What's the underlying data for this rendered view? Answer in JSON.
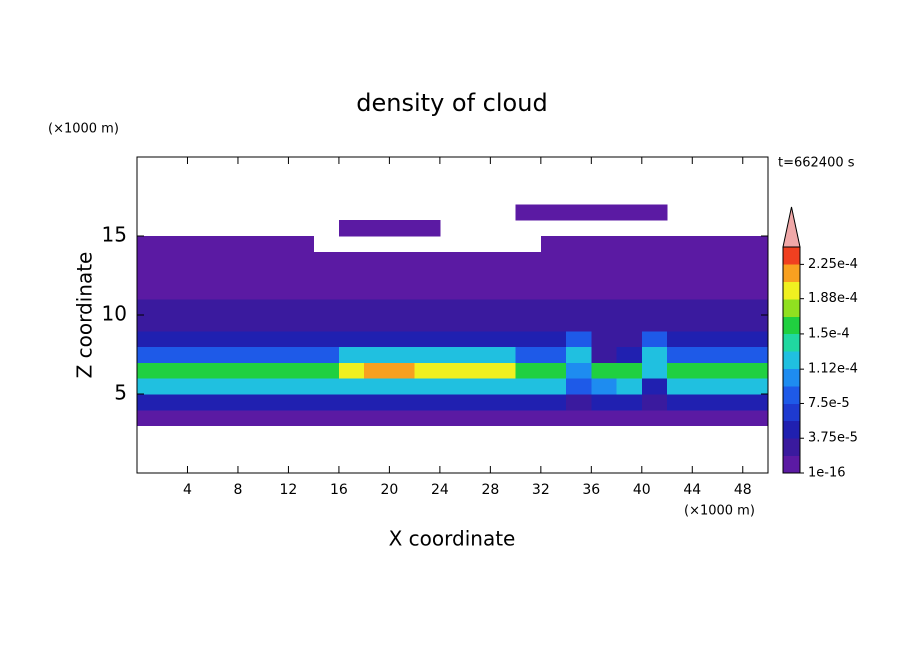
{
  "chart_data": {
    "type": "contour",
    "title": "density of cloud",
    "x_label": "X coordinate",
    "y_label": "Z coordinate",
    "x_unit_label": "(×1000 m)",
    "y_unit_label": "(×1000 m)",
    "time_label": "t=662400 s",
    "xlim": [
      0,
      50
    ],
    "ylim": [
      0,
      20
    ],
    "xticks": [
      4,
      8,
      12,
      16,
      20,
      24,
      28,
      32,
      36,
      40,
      44,
      48
    ],
    "yticks": [
      5,
      10,
      15
    ],
    "x": [
      1,
      3,
      5,
      7,
      9,
      11,
      13,
      15,
      17,
      19,
      21,
      23,
      25,
      27,
      29,
      31,
      33,
      35,
      37,
      39,
      41,
      43,
      45,
      47,
      49
    ],
    "y": [
      0.5,
      1.5,
      2.5,
      3.5,
      4.5,
      5.5,
      6.5,
      7.5,
      8.5,
      9.5,
      10.5,
      11.5,
      12.5,
      13.5,
      14.5,
      15.5,
      16.5,
      17.5,
      18.5,
      19.5
    ],
    "values": [
      [
        null,
        null,
        null,
        null,
        null,
        null,
        null,
        null,
        null,
        null,
        null,
        null,
        null,
        null,
        null,
        null,
        null,
        null,
        null,
        null,
        null,
        null,
        null,
        null,
        null
      ],
      [
        null,
        null,
        null,
        null,
        null,
        null,
        null,
        null,
        null,
        null,
        null,
        null,
        null,
        null,
        null,
        null,
        null,
        null,
        null,
        null,
        null,
        null,
        null,
        null,
        null
      ],
      [
        null,
        null,
        null,
        null,
        null,
        null,
        null,
        null,
        null,
        null,
        null,
        null,
        null,
        null,
        null,
        null,
        null,
        null,
        null,
        null,
        null,
        null,
        null,
        null,
        null
      ],
      [
        1e-05,
        1e-05,
        1e-05,
        1e-05,
        1e-05,
        1e-05,
        1e-05,
        1e-05,
        1e-05,
        1e-05,
        1e-05,
        1e-05,
        1e-05,
        1e-05,
        1e-05,
        1e-05,
        1e-05,
        1e-05,
        1e-05,
        1e-05,
        1e-05,
        1e-05,
        1e-05,
        1e-05,
        1e-05
      ],
      [
        5e-05,
        5e-05,
        5e-05,
        5e-05,
        5e-05,
        5e-05,
        5e-05,
        5e-05,
        5e-05,
        5e-05,
        5e-05,
        5e-05,
        5e-05,
        5e-05,
        5e-05,
        5e-05,
        5e-05,
        3e-05,
        5e-05,
        5e-05,
        2e-05,
        5e-05,
        5e-05,
        5e-05,
        5e-05
      ],
      [
        0.00012,
        0.00012,
        0.00012,
        0.00012,
        0.00012,
        0.00012,
        0.00012,
        0.00012,
        0.00013,
        0.00013,
        0.00013,
        0.00013,
        0.00013,
        0.00013,
        0.00013,
        0.00012,
        0.00012,
        8e-05,
        0.0001,
        0.00012,
        5e-05,
        0.00012,
        0.00012,
        0.00012,
        0.00012
      ],
      [
        0.00016,
        0.00016,
        0.00016,
        0.00016,
        0.00016,
        0.00016,
        0.00016,
        0.00016,
        0.00019,
        0.00021,
        0.00021,
        0.00019,
        0.00019,
        0.00019,
        0.00019,
        0.00016,
        0.00016,
        0.0001,
        0.00016,
        0.00016,
        0.00012,
        0.00016,
        0.00016,
        0.00016,
        0.00016
      ],
      [
        8e-05,
        8e-05,
        8e-05,
        8e-05,
        8e-05,
        8e-05,
        8e-05,
        8e-05,
        0.00012,
        0.00012,
        0.00012,
        0.00012,
        0.00012,
        0.00012,
        0.00012,
        8e-05,
        8e-05,
        0.00012,
        3e-05,
        5e-05,
        0.00012,
        8e-05,
        8e-05,
        8e-05,
        8e-05
      ],
      [
        5e-05,
        5e-05,
        5e-05,
        5e-05,
        5e-05,
        5e-05,
        5e-05,
        5e-05,
        5e-05,
        5e-05,
        5e-05,
        5e-05,
        5e-05,
        5e-05,
        5e-05,
        5e-05,
        5e-05,
        8e-05,
        2e-05,
        2e-05,
        8e-05,
        5e-05,
        5e-05,
        5e-05,
        5e-05
      ],
      [
        3e-05,
        3e-05,
        3e-05,
        3e-05,
        3e-05,
        3e-05,
        3e-05,
        3e-05,
        3e-05,
        3e-05,
        3e-05,
        3e-05,
        3e-05,
        3e-05,
        3e-05,
        3e-05,
        3e-05,
        3e-05,
        3e-05,
        3e-05,
        3e-05,
        3e-05,
        3e-05,
        3e-05,
        3e-05
      ],
      [
        2e-05,
        2e-05,
        2e-05,
        2e-05,
        2e-05,
        2e-05,
        2e-05,
        2e-05,
        2e-05,
        2e-05,
        2e-05,
        2e-05,
        2e-05,
        2e-05,
        2e-05,
        2e-05,
        2e-05,
        2e-05,
        2e-05,
        2e-05,
        2e-05,
        2e-05,
        2e-05,
        2e-05,
        2e-05
      ],
      [
        1e-05,
        1e-05,
        1e-05,
        1e-05,
        1e-05,
        1e-05,
        1e-05,
        1e-05,
        1e-05,
        1e-05,
        1e-05,
        1e-05,
        1e-05,
        1e-05,
        1e-05,
        1e-05,
        1e-05,
        1e-05,
        1e-05,
        1e-05,
        1e-05,
        1e-05,
        1e-05,
        1e-05,
        1e-05
      ],
      [
        1e-05,
        1e-05,
        1e-05,
        1e-05,
        1e-05,
        1e-05,
        1e-05,
        1e-05,
        1e-05,
        1e-05,
        1e-05,
        1e-05,
        1e-05,
        1e-05,
        1e-05,
        1e-05,
        1e-05,
        1e-05,
        1e-05,
        1e-05,
        1e-05,
        1e-05,
        1e-05,
        1e-05,
        1e-05
      ],
      [
        1e-05,
        1e-05,
        1e-05,
        1e-05,
        1e-05,
        1e-05,
        1e-05,
        1e-05,
        1e-05,
        1e-05,
        1e-05,
        1e-05,
        1e-05,
        1e-05,
        1e-05,
        1e-05,
        1e-05,
        1e-05,
        1e-05,
        1e-05,
        1e-05,
        1e-05,
        1e-05,
        1e-05,
        1e-05
      ],
      [
        1e-05,
        1e-05,
        1e-05,
        1e-05,
        1e-05,
        1e-05,
        1e-05,
        null,
        null,
        null,
        null,
        null,
        null,
        null,
        null,
        null,
        1e-05,
        1e-05,
        1e-05,
        1e-05,
        1e-05,
        1e-05,
        1e-05,
        1e-05,
        1e-05
      ],
      [
        null,
        null,
        null,
        null,
        null,
        null,
        null,
        null,
        1e-05,
        1e-05,
        1e-05,
        1e-05,
        null,
        null,
        null,
        null,
        null,
        null,
        null,
        null,
        null,
        null,
        null,
        null,
        null
      ],
      [
        null,
        null,
        null,
        null,
        null,
        null,
        null,
        null,
        null,
        null,
        null,
        null,
        null,
        null,
        null,
        1e-05,
        1e-05,
        1e-05,
        1e-05,
        1e-05,
        1e-05,
        null,
        null,
        null,
        null
      ],
      [
        null,
        null,
        null,
        null,
        null,
        null,
        null,
        null,
        null,
        null,
        null,
        null,
        null,
        null,
        null,
        null,
        null,
        null,
        null,
        null,
        null,
        null,
        null,
        null,
        null
      ],
      [
        null,
        null,
        null,
        null,
        null,
        null,
        null,
        null,
        null,
        null,
        null,
        null,
        null,
        null,
        null,
        null,
        null,
        null,
        null,
        null,
        null,
        null,
        null,
        null,
        null
      ],
      [
        null,
        null,
        null,
        null,
        null,
        null,
        null,
        null,
        null,
        null,
        null,
        null,
        null,
        null,
        null,
        null,
        null,
        null,
        null,
        null,
        null,
        null,
        null,
        null,
        null
      ]
    ],
    "colorbar": {
      "lim": [
        1e-16,
        0.00024375
      ],
      "colors": [
        "#5b1aa3",
        "#3a1a9e",
        "#2020b0",
        "#1e3ad0",
        "#1e5ae8",
        "#1e8cf0",
        "#20c0e0",
        "#20d8a0",
        "#20d040",
        "#90e020",
        "#f0f020",
        "#f8a020",
        "#f04020"
      ],
      "extend_color": "#f0a8a8",
      "ticks": [
        {
          "value": 1e-16,
          "label": "1e-16"
        },
        {
          "value": 3.75e-05,
          "label": "3.75e-5"
        },
        {
          "value": 7.5e-05,
          "label": "7.5e-5"
        },
        {
          "value": 0.000112,
          "label": "1.12e-4"
        },
        {
          "value": 0.00015,
          "label": "1.5e-4"
        },
        {
          "value": 0.000188,
          "label": "1.88e-4"
        },
        {
          "value": 0.000225,
          "label": "2.25e-4"
        }
      ]
    }
  }
}
